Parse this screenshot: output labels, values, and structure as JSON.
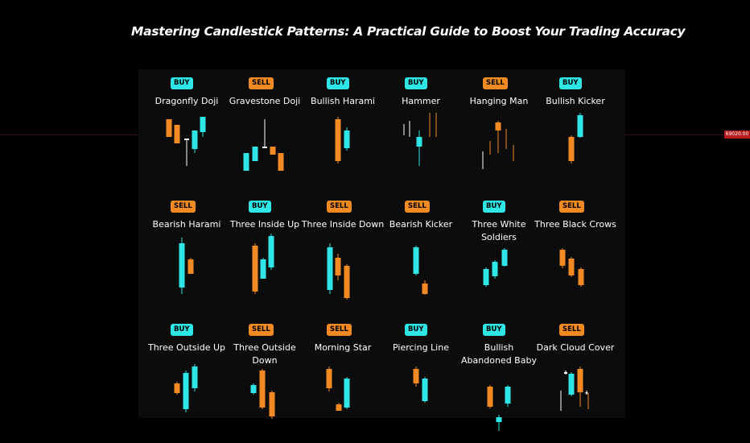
{
  "title": "Mastering Candlestick Patterns: A Practical Guide to Boost Your Trading Accuracy",
  "price_label": "69020.00",
  "colors": {
    "bull": "#2ee6e6",
    "bear": "#f28a24",
    "neutral": "#ffffff"
  },
  "patterns": [
    {
      "signal": "BUY",
      "name": "Dragonfly Doji"
    },
    {
      "signal": "SELL",
      "name": "Gravestone Doji"
    },
    {
      "signal": "BUY",
      "name": "Bullish Harami"
    },
    {
      "signal": "BUY",
      "name": "Hammer"
    },
    {
      "signal": "SELL",
      "name": "Hanging Man"
    },
    {
      "signal": "BUY",
      "name": "Bullish Kicker"
    },
    {
      "signal": "SELL",
      "name": "Bearish Harami"
    },
    {
      "signal": "BUY",
      "name": "Three Inside Up"
    },
    {
      "signal": "SELL",
      "name": "Three Inside Down"
    },
    {
      "signal": "SELL",
      "name": "Bearish Kicker"
    },
    {
      "signal": "BUY",
      "name": "Three White Soldiers"
    },
    {
      "signal": "SELL",
      "name": "Three Black Crows"
    },
    {
      "signal": "BUY",
      "name": "Three Outside Up"
    },
    {
      "signal": "SELL",
      "name": "Three Outside Down"
    },
    {
      "signal": "SELL",
      "name": "Morning Star"
    },
    {
      "signal": "BUY",
      "name": "Piercing Line"
    },
    {
      "signal": "BUY",
      "name": "Bullish\nAbandoned Baby"
    },
    {
      "signal": "SELL",
      "name": "Dark Cloud Cover"
    }
  ]
}
